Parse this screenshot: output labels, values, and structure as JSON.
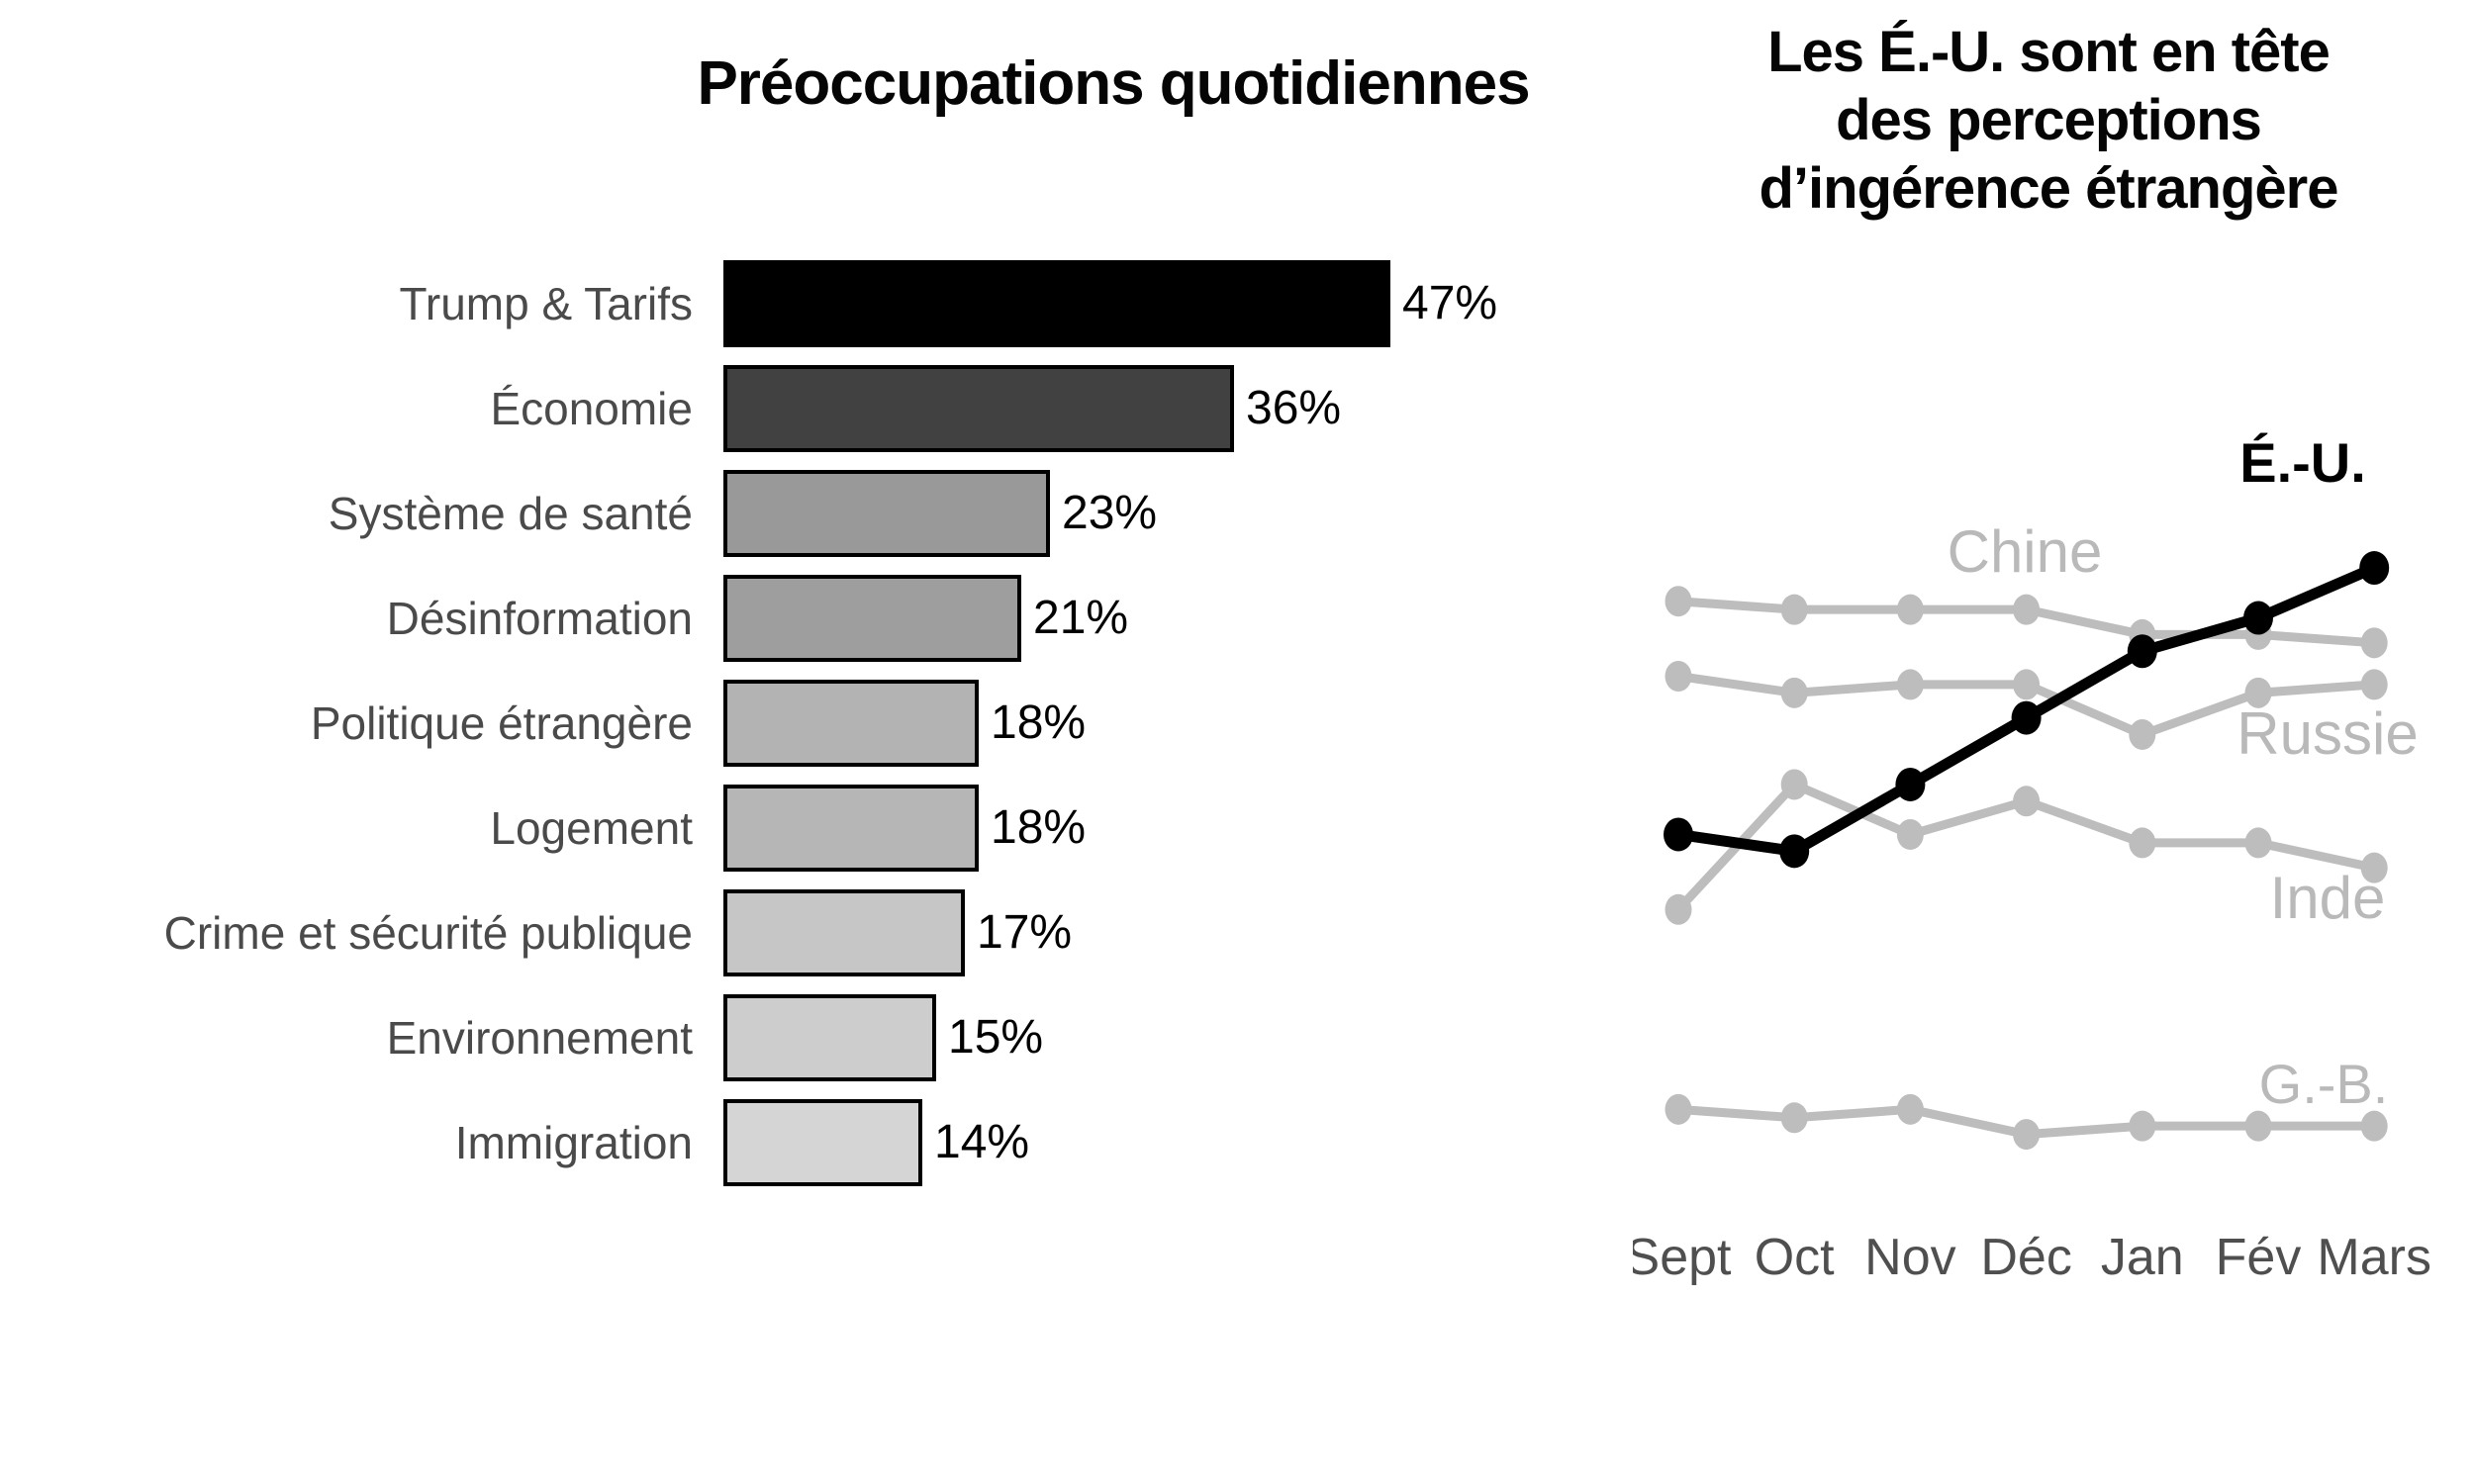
{
  "page": {
    "background": "#ffffff"
  },
  "left_chart": {
    "title": "Préoccupations quotidiennes"
  },
  "right_chart": {
    "title_lines": [
      "Les É.-U. sont en tête",
      "des perceptions",
      "d’ingérence étrangère"
    ]
  },
  "chart_data": [
    {
      "type": "bar",
      "orientation": "horizontal",
      "title": "Préoccupations quotidiennes",
      "categories": [
        "Trump & Tarifs",
        "Économie",
        "Système de santé",
        "Désinformation",
        "Politique étrangère",
        "Logement",
        "Crime et sécurité publique",
        "Environnement",
        "Immigration"
      ],
      "values": [
        47,
        36,
        23,
        21,
        18,
        18,
        17,
        15,
        14
      ],
      "value_labels": [
        "47%",
        "36%",
        "23%",
        "21%",
        "18%",
        "18%",
        "17%",
        "15%",
        "14%"
      ],
      "bar_colors": [
        "#000000",
        "#414141",
        "#999999",
        "#9e9e9e",
        "#b3b3b3",
        "#b6b6b6",
        "#c6c6c6",
        "#cdcdcd",
        "#d5d5d5"
      ],
      "bar_border_color": "#000000",
      "category_label_color": "#4a4a4a",
      "value_label_color": "#000000",
      "unit": "%",
      "xlim": [
        0,
        50
      ],
      "axes_visible": false,
      "grid": false
    },
    {
      "type": "line",
      "title": "Les É.-U. sont en tête des perceptions d’ingérence étrangère",
      "x": [
        "Sept",
        "Oct",
        "Nov",
        "Déc",
        "Jan",
        "Fév",
        "Mars"
      ],
      "series": [
        {
          "name": "Chine",
          "values": [
            42,
            41.5,
            41.5,
            41.5,
            40,
            40,
            39.5
          ],
          "color": "#bdbdbd",
          "highlight": false
        },
        {
          "name": "Russie",
          "values": [
            37.5,
            36.5,
            37,
            37,
            34,
            36.5,
            37
          ],
          "color": "#bdbdbd",
          "highlight": false
        },
        {
          "name": "Inde",
          "values": [
            23.5,
            31,
            28,
            30,
            27.5,
            27.5,
            26
          ],
          "color": "#bdbdbd",
          "highlight": false
        },
        {
          "name": "G.-B.",
          "values": [
            11.5,
            11,
            11.5,
            10,
            10.5,
            10.5,
            10.5
          ],
          "color": "#bdbdbd",
          "highlight": false
        },
        {
          "name": "É.-U.",
          "values": [
            28,
            27,
            31,
            35,
            39,
            41,
            44
          ],
          "color": "#000000",
          "highlight": true
        }
      ],
      "unit": "%",
      "ylim": [
        0,
        53
      ],
      "y_axis_visible": false,
      "x_axis_visible": false,
      "grid": false,
      "legend": "inline-labels",
      "x_tick_color": "#4f4f4f",
      "series_label_color": "#b9b9b9",
      "markers": "circle"
    }
  ]
}
